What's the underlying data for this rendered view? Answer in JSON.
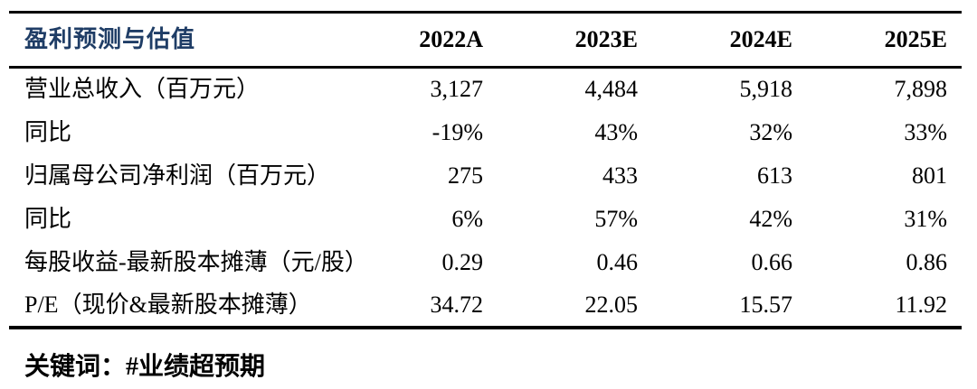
{
  "page": {
    "background": "#ffffff",
    "rule_color": "#000000",
    "title_color": "#1f3d66"
  },
  "table": {
    "title": "盈利预测与估值",
    "columns": [
      "2022A",
      "2023E",
      "2024E",
      "2025E"
    ],
    "rows": [
      {
        "label": "营业总收入（百万元）",
        "values": [
          "3,127",
          "4,484",
          "5,918",
          "7,898"
        ]
      },
      {
        "label": "同比",
        "values": [
          "-19%",
          "43%",
          "32%",
          "33%"
        ]
      },
      {
        "label": "归属母公司净利润（百万元）",
        "values": [
          "275",
          "433",
          "613",
          "801"
        ]
      },
      {
        "label": "同比",
        "values": [
          "6%",
          "57%",
          "42%",
          "31%"
        ]
      },
      {
        "label": "每股收益-最新股本摊薄（元/股）",
        "values": [
          "0.29",
          "0.46",
          "0.66",
          "0.86"
        ]
      },
      {
        "label": "P/E（现价&最新股本摊薄）",
        "values": [
          "34.72",
          "22.05",
          "15.57",
          "11.92"
        ]
      }
    ]
  },
  "footer": {
    "keyword_label": "关键词：",
    "keyword_tag": "#业绩超预期"
  }
}
